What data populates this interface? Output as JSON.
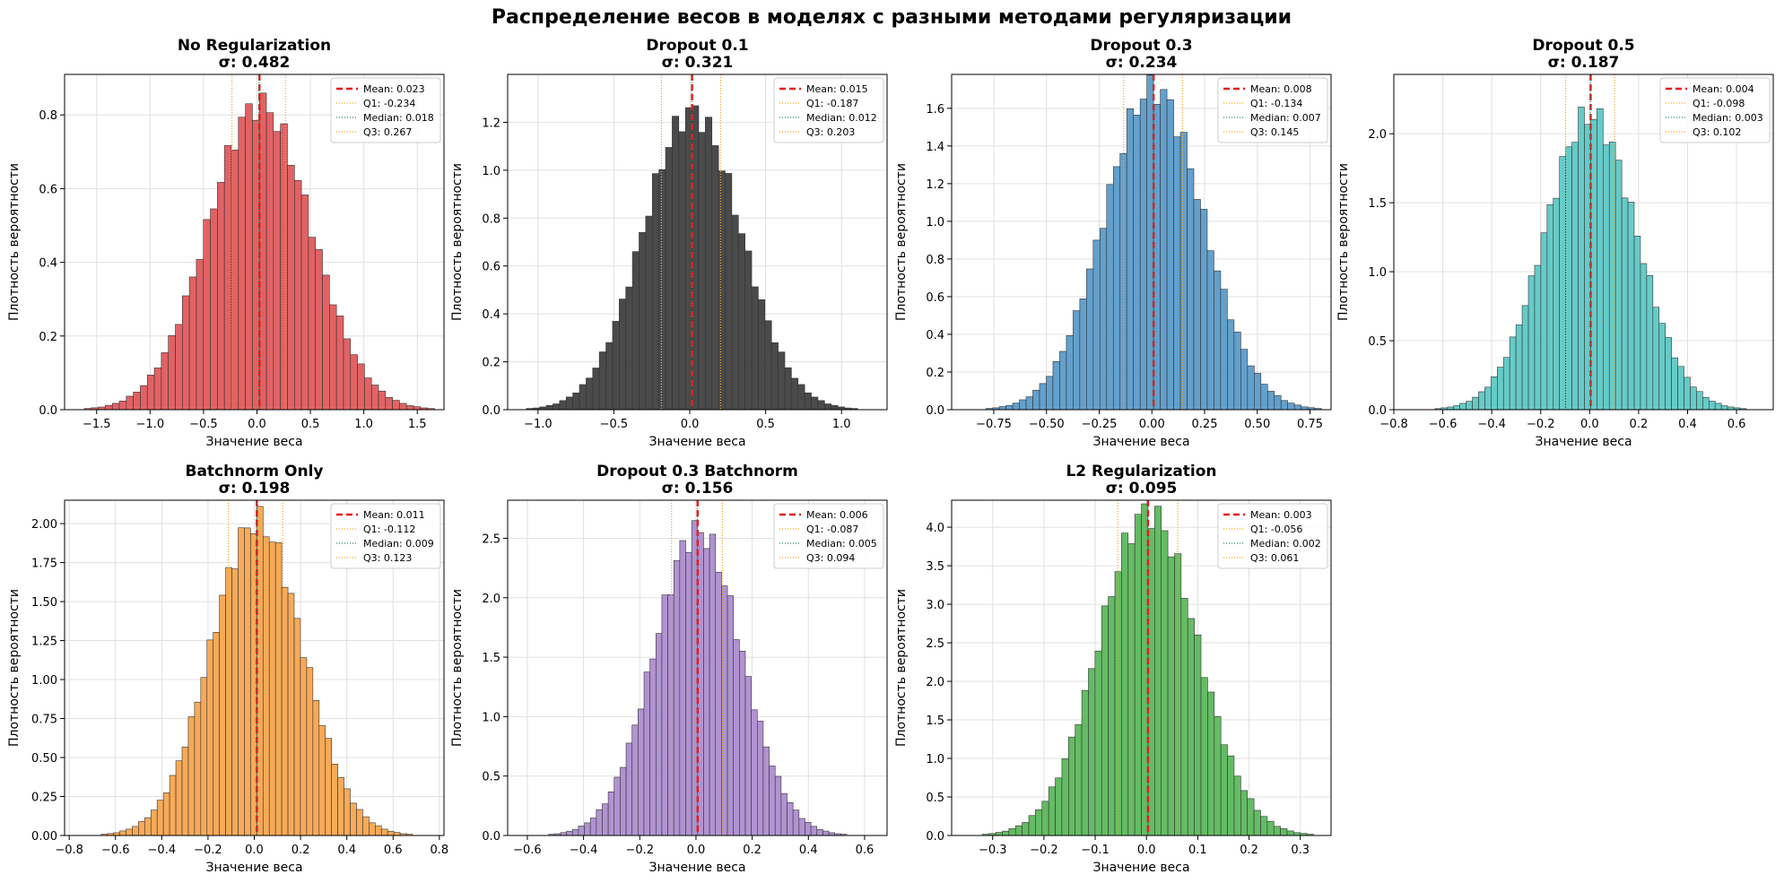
{
  "figure_title": "Распределение весов в моделях с разными методами регуляризации",
  "colors": {
    "mean_line": "#e31a1c",
    "quartile_line": "#f5a623",
    "median_line": "#2e8b57",
    "grid": "#e0e0e0",
    "bar_edge": "#333333"
  },
  "chart_data": [
    {
      "type": "bar",
      "title": "No Regularization",
      "sigma_label": "σ: 0.482",
      "std": 0.482,
      "color": "#e05a5c",
      "xlabel": "Значение веса",
      "ylabel": "Плотность вероятности",
      "xlim": [
        -1.8,
        1.75
      ],
      "ylim": [
        0,
        0.91
      ],
      "xticks": [
        -1.5,
        -1.0,
        -0.5,
        0.0,
        0.5,
        1.0,
        1.5
      ],
      "xtick_labels": [
        "−1.5",
        "−1.0",
        "−0.5",
        "0.0",
        "0.5",
        "1.0",
        "1.5"
      ],
      "yticks": [
        0,
        0.2,
        0.4,
        0.6,
        0.8
      ],
      "ytick_labels": [
        "0.0",
        "0.2",
        "0.4",
        "0.6",
        "0.8"
      ],
      "legend": [
        {
          "kind": "mean",
          "label": "Mean: 0.023",
          "value": 0.023
        },
        {
          "kind": "q1",
          "label": "Q1: -0.234",
          "value": -0.234
        },
        {
          "kind": "median",
          "label": "Median: 0.018",
          "value": 0.018
        },
        {
          "kind": "q3",
          "label": "Q3: 0.267",
          "value": 0.267
        }
      ]
    },
    {
      "type": "bar",
      "title": "Dropout 0.1",
      "sigma_label": "σ: 0.321",
      "std": 0.321,
      "color": "#404040",
      "xlabel": "Значение веса",
      "ylabel": "Плотность вероятности",
      "xlim": [
        -1.2,
        1.3
      ],
      "ylim": [
        0,
        1.4
      ],
      "xticks": [
        -1.0,
        -0.5,
        0.0,
        0.5,
        1.0
      ],
      "xtick_labels": [
        "−1.0",
        "−0.5",
        "0.0",
        "0.5",
        "1.0"
      ],
      "yticks": [
        0,
        0.2,
        0.4,
        0.6,
        0.8,
        1.0,
        1.2
      ],
      "ytick_labels": [
        "0.0",
        "0.2",
        "0.4",
        "0.6",
        "0.8",
        "1.0",
        "1.2"
      ],
      "legend": [
        {
          "kind": "mean",
          "label": "Mean: 0.015",
          "value": 0.015
        },
        {
          "kind": "q1",
          "label": "Q1: -0.187",
          "value": -0.187
        },
        {
          "kind": "median",
          "label": "Median: 0.012",
          "value": 0.012
        },
        {
          "kind": "q3",
          "label": "Q3: 0.203",
          "value": 0.203
        }
      ]
    },
    {
      "type": "bar",
      "title": "Dropout 0.3",
      "sigma_label": "σ: 0.234",
      "std": 0.234,
      "color": "#5b9bc9",
      "xlabel": "Значение веса",
      "ylabel": "Плотность вероятности",
      "xlim": [
        -0.95,
        0.85
      ],
      "ylim": [
        0,
        1.78
      ],
      "xticks": [
        -0.75,
        -0.5,
        -0.25,
        0.0,
        0.25,
        0.5,
        0.75
      ],
      "xtick_labels": [
        "−0.75",
        "−0.50",
        "−0.25",
        "0.00",
        "0.25",
        "0.50",
        "0.75"
      ],
      "yticks": [
        0,
        0.2,
        0.4,
        0.6,
        0.8,
        1.0,
        1.2,
        1.4,
        1.6
      ],
      "ytick_labels": [
        "0.0",
        "0.2",
        "0.4",
        "0.6",
        "0.8",
        "1.0",
        "1.2",
        "1.4",
        "1.6"
      ],
      "legend": [
        {
          "kind": "mean",
          "label": "Mean: 0.008",
          "value": 0.008
        },
        {
          "kind": "q1",
          "label": "Q1: -0.134",
          "value": -0.134
        },
        {
          "kind": "median",
          "label": "Median: 0.007",
          "value": 0.007
        },
        {
          "kind": "q3",
          "label": "Q3: 0.145",
          "value": 0.145
        }
      ]
    },
    {
      "type": "bar",
      "title": "Dropout 0.5",
      "sigma_label": "σ: 0.187",
      "std": 0.187,
      "color": "#5ec8c5",
      "xlabel": "Значение веса",
      "ylabel": "Плотность вероятности",
      "xlim": [
        -0.8,
        0.75
      ],
      "ylim": [
        0,
        2.43
      ],
      "xticks": [
        -0.8,
        -0.6,
        -0.4,
        -0.2,
        0.0,
        0.2,
        0.4,
        0.6
      ],
      "xtick_labels": [
        "−0.8",
        "−0.6",
        "−0.4",
        "−0.2",
        "0.0",
        "0.2",
        "0.4",
        "0.6"
      ],
      "yticks": [
        0,
        0.5,
        1.0,
        1.5,
        2.0
      ],
      "ytick_labels": [
        "0.0",
        "0.5",
        "1.0",
        "1.5",
        "2.0"
      ],
      "legend": [
        {
          "kind": "mean",
          "label": "Mean: 0.004",
          "value": 0.004
        },
        {
          "kind": "q1",
          "label": "Q1: -0.098",
          "value": -0.098
        },
        {
          "kind": "median",
          "label": "Median: 0.003",
          "value": 0.003
        },
        {
          "kind": "q3",
          "label": "Q3: 0.102",
          "value": 0.102
        }
      ]
    },
    {
      "type": "bar",
      "title": "Batchnorm Only",
      "sigma_label": "σ: 0.198",
      "std": 0.198,
      "color": "#f7a54f",
      "xlabel": "Значение веса",
      "ylabel": "Плотность вероятности",
      "xlim": [
        -0.82,
        0.82
      ],
      "ylim": [
        0,
        2.15
      ],
      "xticks": [
        -0.8,
        -0.6,
        -0.4,
        -0.2,
        0.0,
        0.2,
        0.4,
        0.6,
        0.8
      ],
      "xtick_labels": [
        "−0.8",
        "−0.6",
        "−0.4",
        "−0.2",
        "0.0",
        "0.2",
        "0.4",
        "0.6",
        "0.8"
      ],
      "yticks": [
        0,
        0.25,
        0.5,
        0.75,
        1.0,
        1.25,
        1.5,
        1.75,
        2.0
      ],
      "ytick_labels": [
        "0.00",
        "0.25",
        "0.50",
        "0.75",
        "1.00",
        "1.25",
        "1.50",
        "1.75",
        "2.00"
      ],
      "legend": [
        {
          "kind": "mean",
          "label": "Mean: 0.011",
          "value": 0.011
        },
        {
          "kind": "q1",
          "label": "Q1: -0.112",
          "value": -0.112
        },
        {
          "kind": "median",
          "label": "Median: 0.009",
          "value": 0.009
        },
        {
          "kind": "q3",
          "label": "Q3: 0.123",
          "value": 0.123
        }
      ]
    },
    {
      "type": "bar",
      "title": "Dropout 0.3 Batchnorm",
      "sigma_label": "σ: 0.156",
      "std": 0.156,
      "color": "#ad8dcf",
      "xlabel": "Значение веса",
      "ylabel": "Плотность вероятности",
      "xlim": [
        -0.67,
        0.68
      ],
      "ylim": [
        0,
        2.82
      ],
      "xticks": [
        -0.6,
        -0.4,
        -0.2,
        0.0,
        0.2,
        0.4,
        0.6
      ],
      "xtick_labels": [
        "−0.6",
        "−0.4",
        "−0.2",
        "0.0",
        "0.2",
        "0.4",
        "0.6"
      ],
      "yticks": [
        0,
        0.5,
        1.0,
        1.5,
        2.0,
        2.5
      ],
      "ytick_labels": [
        "0.0",
        "0.5",
        "1.0",
        "1.5",
        "2.0",
        "2.5"
      ],
      "legend": [
        {
          "kind": "mean",
          "label": "Mean: 0.006",
          "value": 0.006
        },
        {
          "kind": "q1",
          "label": "Q1: -0.087",
          "value": -0.087
        },
        {
          "kind": "median",
          "label": "Median: 0.005",
          "value": 0.005
        },
        {
          "kind": "q3",
          "label": "Q3: 0.094",
          "value": 0.094
        }
      ]
    },
    {
      "type": "bar",
      "title": "L2 Regularization",
      "sigma_label": "σ: 0.095",
      "std": 0.095,
      "color": "#5cb85c",
      "xlabel": "Значение веса",
      "ylabel": "Плотность вероятности",
      "xlim": [
        -0.38,
        0.36
      ],
      "ylim": [
        0,
        4.35
      ],
      "xticks": [
        -0.3,
        -0.2,
        -0.1,
        0.0,
        0.1,
        0.2,
        0.3
      ],
      "xtick_labels": [
        "−0.3",
        "−0.2",
        "−0.1",
        "0.0",
        "0.1",
        "0.2",
        "0.3"
      ],
      "yticks": [
        0,
        0.5,
        1.0,
        1.5,
        2.0,
        2.5,
        3.0,
        3.5,
        4.0
      ],
      "ytick_labels": [
        "0.0",
        "0.5",
        "1.0",
        "1.5",
        "2.0",
        "2.5",
        "3.0",
        "3.5",
        "4.0"
      ],
      "legend": [
        {
          "kind": "mean",
          "label": "Mean: 0.003",
          "value": 0.003
        },
        {
          "kind": "q1",
          "label": "Q1: -0.056",
          "value": -0.056
        },
        {
          "kind": "median",
          "label": "Median: 0.002",
          "value": 0.002
        },
        {
          "kind": "q3",
          "label": "Q3: 0.061",
          "value": 0.061
        }
      ]
    }
  ]
}
